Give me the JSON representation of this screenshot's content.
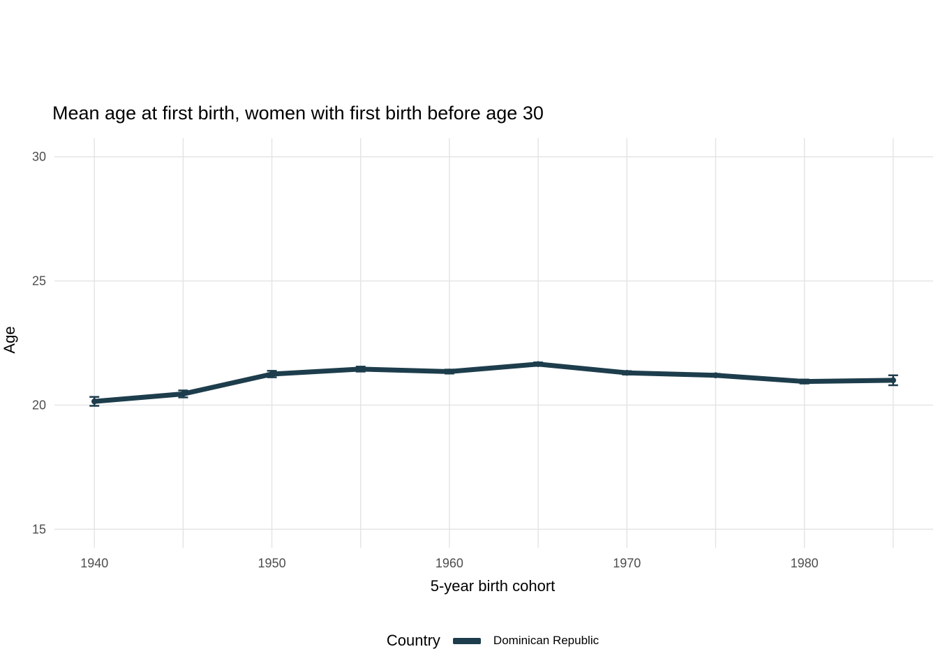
{
  "chart_data": {
    "type": "line",
    "title": "Mean age at first birth, women with first birth before age 30",
    "xlabel": "5-year birth cohort",
    "ylabel": "Age",
    "x": [
      1940,
      1945,
      1950,
      1955,
      1960,
      1965,
      1970,
      1975,
      1980,
      1985
    ],
    "series": [
      {
        "name": "Dominican Republic",
        "color": "#1d3d4c",
        "values": [
          20.15,
          20.45,
          21.25,
          21.45,
          21.35,
          21.65,
          21.3,
          21.2,
          20.95,
          21.0
        ],
        "errors": [
          0.18,
          0.14,
          0.13,
          0.1,
          0.08,
          0.07,
          0.07,
          0.06,
          0.08,
          0.2
        ]
      }
    ],
    "xlim": [
      1937.75,
      1987.25
    ],
    "ylim": [
      14.25,
      30.75
    ],
    "x_ticks": [
      1940,
      1950,
      1960,
      1970,
      1980
    ],
    "x_gridlines": [
      1940,
      1945,
      1950,
      1955,
      1960,
      1965,
      1970,
      1975,
      1980,
      1985
    ],
    "y_ticks": [
      15,
      20,
      25,
      30
    ],
    "grid": true,
    "grid_color": "#e3e3e3",
    "tick_label_color": "#4d4d4d",
    "legend": {
      "title": "Country",
      "position": "bottom"
    }
  }
}
